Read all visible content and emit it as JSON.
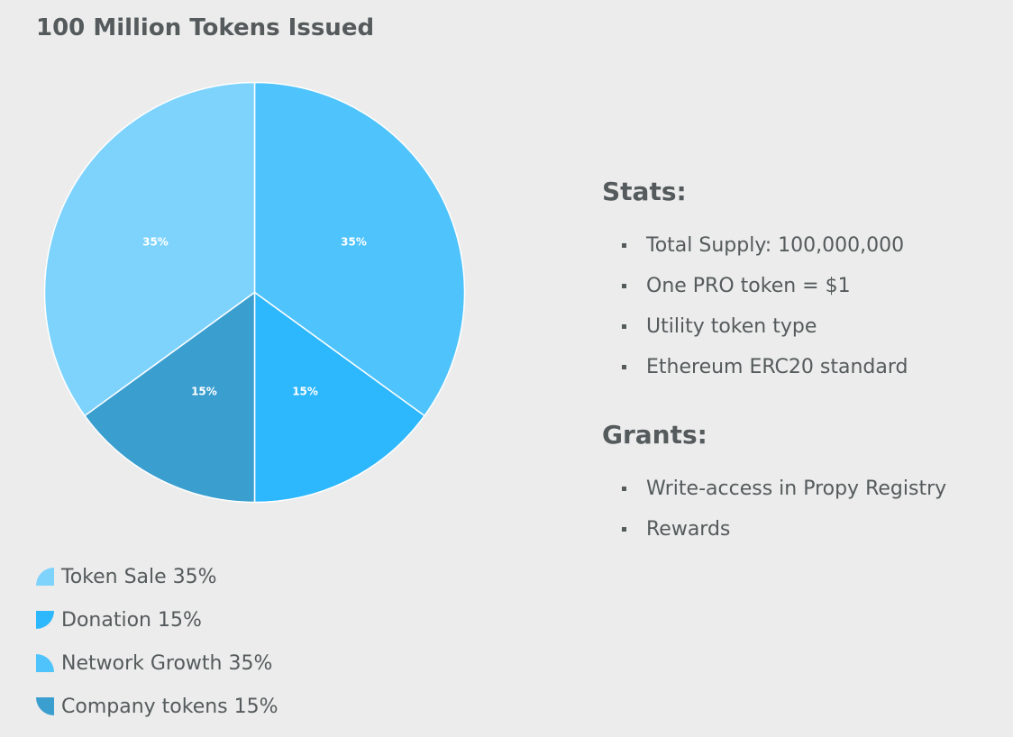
{
  "title": "100 Million Tokens Issued",
  "chart_data": {
    "type": "pie",
    "title": "100 Million Tokens Issued",
    "slices": [
      {
        "label": "Network Growth",
        "value": 35,
        "display": "35%",
        "color": "#4fc3fb"
      },
      {
        "label": "Donation",
        "value": 15,
        "display": "15%",
        "color": "#2db7fc"
      },
      {
        "label": "Company tokens",
        "value": 15,
        "display": "15%",
        "color": "#3a9ecf"
      },
      {
        "label": "Token Sale",
        "value": 35,
        "display": "35%",
        "color": "#7ed3fd"
      }
    ],
    "legend_placement": "bottom-left"
  },
  "legend": [
    {
      "label": "Token Sale 35%",
      "color": "#7ed3fd"
    },
    {
      "label": "Donation 15%",
      "color": "#2db7fc"
    },
    {
      "label": "Network Growth 35%",
      "color": "#4fc3fb"
    },
    {
      "label": "Company tokens 15%",
      "color": "#3a9ecf"
    }
  ],
  "stats": {
    "heading": "Stats:",
    "items": [
      "Total Supply: 100,000,000",
      "One PRO token = $1",
      "Utility token type",
      "Ethereum ERC20 standard"
    ]
  },
  "grants": {
    "heading": "Grants:",
    "items": [
      "Write-access in Propy Registry",
      "Rewards"
    ]
  }
}
